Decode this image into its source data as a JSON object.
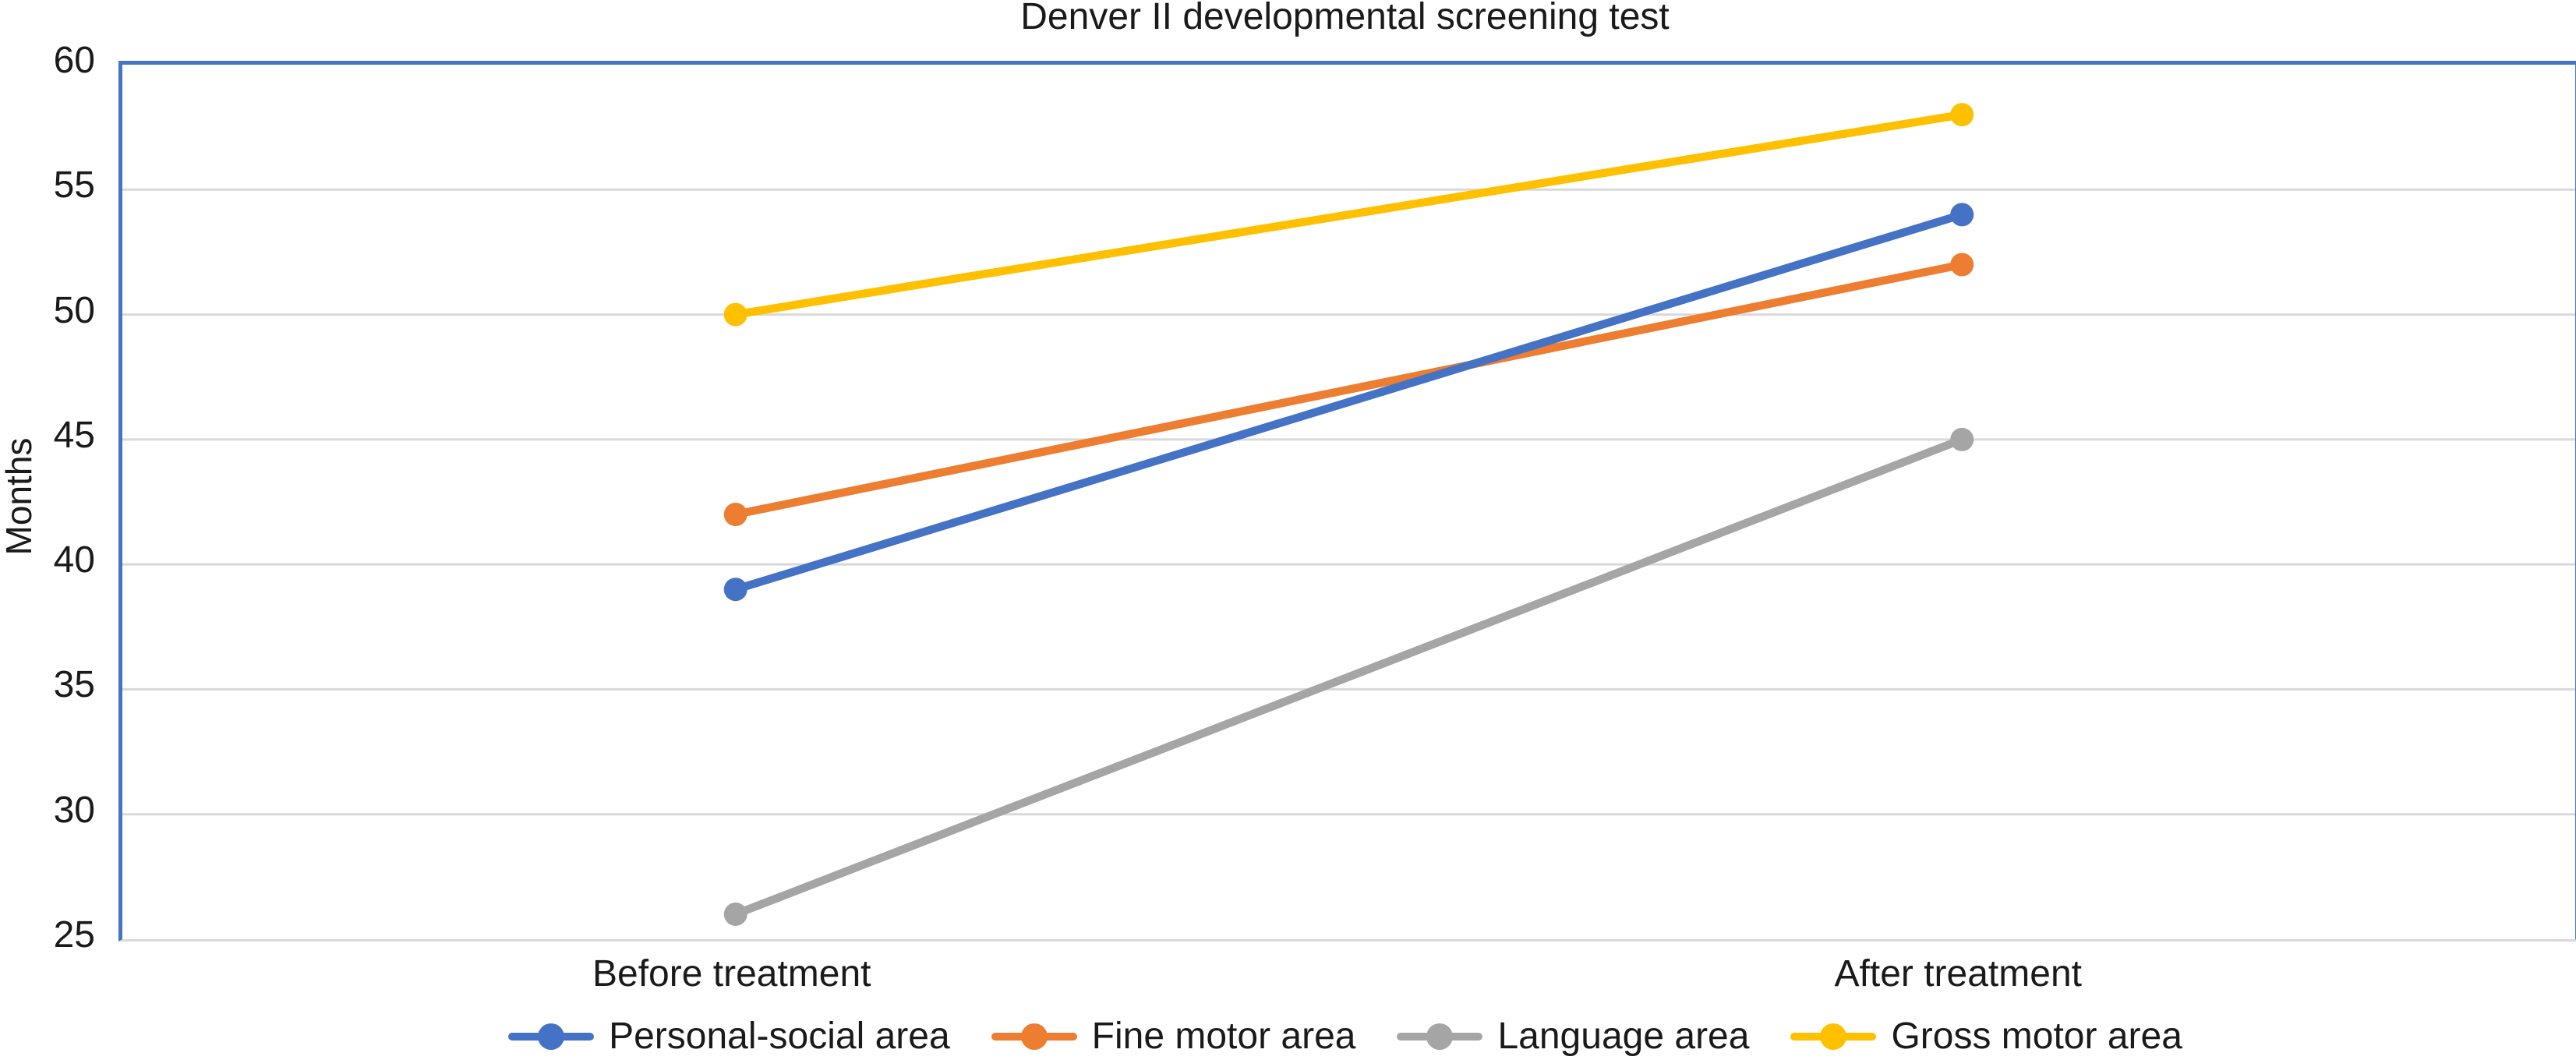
{
  "chart_data": {
    "type": "line",
    "title": "Denver II developmental screening test",
    "xlabel": "",
    "ylabel": "Months",
    "categories": [
      "Before treatment",
      "After treatment"
    ],
    "series": [
      {
        "name": "Personal-social area",
        "color": "#4472C4",
        "values": [
          39,
          54
        ]
      },
      {
        "name": "Fine motor area",
        "color": "#ED7D31",
        "values": [
          42,
          52
        ]
      },
      {
        "name": "Language area",
        "color": "#A5A5A5",
        "values": [
          26,
          45
        ]
      },
      {
        "name": "Gross motor area",
        "color": "#FFC000",
        "values": [
          50,
          58
        ]
      }
    ],
    "ylim": [
      25,
      60
    ],
    "yticks": [
      25,
      30,
      35,
      40,
      45,
      50,
      55,
      60
    ],
    "grid": true,
    "legend_position": "bottom",
    "marker": "circle",
    "styles": {
      "grid_color": "#D9D9D9",
      "plot_border_color": "#4574C6",
      "axis_line_color": "#D9D9D9",
      "text_color": "#1A1A1A",
      "background": "#FFFFFF"
    }
  }
}
